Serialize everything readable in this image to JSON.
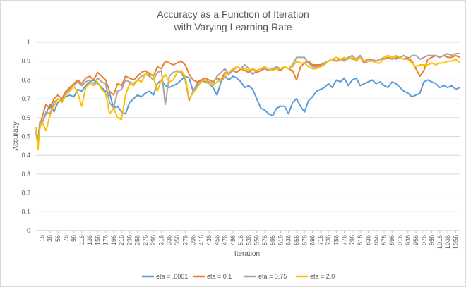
{
  "chart_data": {
    "type": "line",
    "title_line1": "Accuracy as a Function of Iteration",
    "title_line2": "with Varying Learning Rate",
    "xlabel": "Iteration",
    "ylabel": "Accuracy",
    "ylim": [
      0,
      1
    ],
    "yticks": [
      "0",
      "0.1",
      "0.2",
      "0.3",
      "0.4",
      "0.5",
      "0.6",
      "0.7",
      "0.8",
      "0.9",
      "1"
    ],
    "xlim": [
      1,
      1066
    ],
    "xticks": [
      16,
      36,
      56,
      76,
      96,
      116,
      136,
      156,
      176,
      196,
      216,
      236,
      256,
      276,
      296,
      316,
      336,
      356,
      376,
      396,
      416,
      436,
      456,
      476,
      496,
      516,
      536,
      556,
      576,
      596,
      616,
      636,
      656,
      676,
      696,
      716,
      736,
      756,
      776,
      796,
      816,
      836,
      856,
      876,
      896,
      916,
      936,
      956,
      976,
      996,
      1016,
      1036,
      1056
    ],
    "grid": "horizontal",
    "legend_position": "bottom",
    "series": [
      {
        "name": "eta = .0001",
        "color": "#5b9bd5",
        "x": [
          1,
          6,
          11,
          16,
          26,
          36,
          46,
          56,
          66,
          76,
          86,
          96,
          106,
          116,
          126,
          136,
          146,
          156,
          166,
          176,
          186,
          196,
          206,
          216,
          226,
          236,
          246,
          256,
          266,
          276,
          286,
          296,
          306,
          316,
          326,
          336,
          346,
          356,
          366,
          376,
          386,
          396,
          406,
          416,
          426,
          436,
          446,
          456,
          466,
          476,
          486,
          496,
          506,
          516,
          526,
          536,
          546,
          556,
          566,
          576,
          586,
          596,
          606,
          616,
          626,
          636,
          646,
          656,
          666,
          676,
          686,
          696,
          706,
          716,
          726,
          736,
          746,
          756,
          766,
          776,
          786,
          796,
          806,
          816,
          826,
          836,
          846,
          856,
          866,
          876,
          886,
          896,
          906,
          916,
          926,
          936,
          946,
          956,
          966,
          976,
          986,
          996,
          1006,
          1016,
          1026,
          1036,
          1046,
          1056,
          1066
        ],
        "values": [
          0.53,
          0.48,
          0.58,
          0.57,
          0.62,
          0.67,
          0.63,
          0.68,
          0.7,
          0.71,
          0.72,
          0.71,
          0.75,
          0.74,
          0.77,
          0.79,
          0.8,
          0.78,
          0.76,
          0.74,
          0.73,
          0.65,
          0.66,
          0.63,
          0.62,
          0.68,
          0.7,
          0.72,
          0.71,
          0.73,
          0.74,
          0.72,
          0.78,
          0.8,
          0.77,
          0.76,
          0.77,
          0.78,
          0.8,
          0.82,
          0.81,
          0.74,
          0.77,
          0.8,
          0.79,
          0.78,
          0.76,
          0.72,
          0.79,
          0.82,
          0.8,
          0.82,
          0.81,
          0.79,
          0.76,
          0.77,
          0.75,
          0.7,
          0.65,
          0.64,
          0.62,
          0.61,
          0.65,
          0.66,
          0.66,
          0.62,
          0.68,
          0.7,
          0.66,
          0.63,
          0.69,
          0.71,
          0.74,
          0.75,
          0.76,
          0.78,
          0.76,
          0.8,
          0.79,
          0.81,
          0.77,
          0.8,
          0.81,
          0.77,
          0.78,
          0.79,
          0.8,
          0.78,
          0.79,
          0.77,
          0.76,
          0.79,
          0.78,
          0.76,
          0.74,
          0.73,
          0.71,
          0.72,
          0.73,
          0.79,
          0.8,
          0.79,
          0.78,
          0.76,
          0.77,
          0.76,
          0.77,
          0.75,
          0.76
        ]
      },
      {
        "name": "eta = 0.1",
        "color": "#ed7d31",
        "x": [
          1,
          6,
          11,
          16,
          26,
          36,
          46,
          56,
          66,
          76,
          86,
          96,
          106,
          116,
          126,
          136,
          146,
          156,
          166,
          176,
          186,
          196,
          206,
          216,
          226,
          236,
          246,
          256,
          266,
          276,
          286,
          296,
          306,
          316,
          326,
          336,
          346,
          356,
          366,
          376,
          386,
          396,
          406,
          416,
          426,
          436,
          446,
          456,
          466,
          476,
          486,
          496,
          506,
          516,
          526,
          536,
          546,
          556,
          566,
          576,
          586,
          596,
          606,
          616,
          626,
          636,
          646,
          656,
          666,
          676,
          686,
          696,
          706,
          716,
          726,
          736,
          746,
          756,
          766,
          776,
          786,
          796,
          806,
          816,
          826,
          836,
          846,
          856,
          866,
          876,
          886,
          896,
          906,
          916,
          926,
          936,
          946,
          956,
          966,
          976,
          986,
          996,
          1006,
          1016,
          1026,
          1036,
          1046,
          1056,
          1066
        ],
        "values": [
          0.52,
          0.45,
          0.56,
          0.6,
          0.67,
          0.65,
          0.7,
          0.72,
          0.7,
          0.74,
          0.76,
          0.78,
          0.8,
          0.78,
          0.81,
          0.82,
          0.8,
          0.84,
          0.82,
          0.8,
          0.74,
          0.72,
          0.78,
          0.77,
          0.82,
          0.81,
          0.8,
          0.82,
          0.84,
          0.85,
          0.83,
          0.82,
          0.87,
          0.86,
          0.9,
          0.89,
          0.88,
          0.89,
          0.9,
          0.88,
          0.83,
          0.8,
          0.79,
          0.8,
          0.81,
          0.8,
          0.79,
          0.81,
          0.8,
          0.84,
          0.83,
          0.85,
          0.84,
          0.86,
          0.85,
          0.84,
          0.86,
          0.84,
          0.85,
          0.86,
          0.85,
          0.86,
          0.86,
          0.85,
          0.87,
          0.86,
          0.85,
          0.8,
          0.87,
          0.89,
          0.9,
          0.88,
          0.88,
          0.88,
          0.89,
          0.9,
          0.91,
          0.9,
          0.91,
          0.91,
          0.92,
          0.91,
          0.91,
          0.92,
          0.89,
          0.9,
          0.91,
          0.9,
          0.91,
          0.91,
          0.92,
          0.91,
          0.92,
          0.92,
          0.91,
          0.92,
          0.9,
          0.86,
          0.82,
          0.85,
          0.91,
          0.92,
          0.93,
          0.92,
          0.93,
          0.92,
          0.92,
          0.93,
          0.92
        ]
      },
      {
        "name": "eta = 0.75",
        "color": "#a5a5a5",
        "x": [
          1,
          6,
          11,
          16,
          26,
          36,
          46,
          56,
          66,
          76,
          86,
          96,
          106,
          116,
          126,
          136,
          146,
          156,
          166,
          176,
          186,
          196,
          206,
          216,
          226,
          236,
          246,
          256,
          266,
          276,
          286,
          296,
          306,
          316,
          326,
          336,
          346,
          356,
          366,
          376,
          386,
          396,
          406,
          416,
          426,
          436,
          446,
          456,
          466,
          476,
          486,
          496,
          506,
          516,
          526,
          536,
          546,
          556,
          566,
          576,
          586,
          596,
          606,
          616,
          626,
          636,
          646,
          656,
          666,
          676,
          686,
          696,
          706,
          716,
          726,
          736,
          746,
          756,
          766,
          776,
          786,
          796,
          806,
          816,
          826,
          836,
          846,
          856,
          866,
          876,
          886,
          896,
          906,
          916,
          926,
          936,
          946,
          956,
          966,
          976,
          986,
          996,
          1006,
          1016,
          1026,
          1036,
          1046,
          1056,
          1066
        ],
        "values": [
          0.52,
          0.47,
          0.55,
          0.57,
          0.63,
          0.62,
          0.68,
          0.7,
          0.69,
          0.73,
          0.75,
          0.77,
          0.79,
          0.77,
          0.79,
          0.8,
          0.78,
          0.81,
          0.79,
          0.78,
          0.68,
          0.65,
          0.74,
          0.75,
          0.8,
          0.79,
          0.78,
          0.8,
          0.82,
          0.83,
          0.82,
          0.8,
          0.84,
          0.85,
          0.67,
          0.82,
          0.84,
          0.85,
          0.84,
          0.8,
          0.69,
          0.74,
          0.78,
          0.79,
          0.8,
          0.79,
          0.78,
          0.82,
          0.84,
          0.86,
          0.83,
          0.85,
          0.87,
          0.86,
          0.88,
          0.86,
          0.83,
          0.85,
          0.86,
          0.86,
          0.85,
          0.86,
          0.87,
          0.86,
          0.87,
          0.86,
          0.88,
          0.92,
          0.92,
          0.92,
          0.89,
          0.87,
          0.87,
          0.87,
          0.89,
          0.9,
          0.91,
          0.92,
          0.91,
          0.9,
          0.92,
          0.93,
          0.91,
          0.93,
          0.9,
          0.91,
          0.91,
          0.9,
          0.91,
          0.92,
          0.93,
          0.92,
          0.91,
          0.92,
          0.93,
          0.91,
          0.93,
          0.93,
          0.91,
          0.92,
          0.93,
          0.93,
          0.93,
          0.92,
          0.93,
          0.94,
          0.93,
          0.94,
          0.94
        ]
      },
      {
        "name": "eta = 2.0",
        "color": "#ffc000",
        "x": [
          1,
          6,
          11,
          16,
          26,
          36,
          46,
          56,
          66,
          76,
          86,
          96,
          106,
          116,
          126,
          136,
          146,
          156,
          166,
          176,
          186,
          196,
          206,
          216,
          226,
          236,
          246,
          256,
          266,
          276,
          286,
          296,
          306,
          316,
          326,
          336,
          346,
          356,
          366,
          376,
          386,
          396,
          406,
          416,
          426,
          436,
          446,
          456,
          466,
          476,
          486,
          496,
          506,
          516,
          526,
          536,
          546,
          556,
          566,
          576,
          586,
          596,
          606,
          616,
          626,
          636,
          646,
          656,
          666,
          676,
          686,
          696,
          706,
          716,
          726,
          736,
          746,
          756,
          766,
          776,
          786,
          796,
          806,
          816,
          826,
          836,
          846,
          856,
          866,
          876,
          886,
          896,
          906,
          916,
          926,
          936,
          946,
          956,
          966,
          976,
          986,
          996,
          1006,
          1016,
          1026,
          1036,
          1046,
          1056,
          1066
        ],
        "values": [
          0.55,
          0.43,
          0.55,
          0.58,
          0.53,
          0.61,
          0.66,
          0.7,
          0.68,
          0.72,
          0.74,
          0.77,
          0.73,
          0.66,
          0.76,
          0.78,
          0.77,
          0.79,
          0.75,
          0.73,
          0.62,
          0.65,
          0.6,
          0.59,
          0.72,
          0.78,
          0.77,
          0.8,
          0.79,
          0.83,
          0.84,
          0.82,
          0.74,
          0.8,
          0.83,
          0.79,
          0.8,
          0.84,
          0.85,
          0.82,
          0.7,
          0.73,
          0.76,
          0.79,
          0.8,
          0.78,
          0.77,
          0.79,
          0.8,
          0.82,
          0.84,
          0.86,
          0.87,
          0.86,
          0.86,
          0.85,
          0.86,
          0.85,
          0.86,
          0.87,
          0.86,
          0.85,
          0.86,
          0.86,
          0.87,
          0.86,
          0.87,
          0.9,
          0.89,
          0.89,
          0.87,
          0.86,
          0.86,
          0.87,
          0.88,
          0.9,
          0.91,
          0.92,
          0.91,
          0.92,
          0.91,
          0.92,
          0.9,
          0.92,
          0.9,
          0.9,
          0.9,
          0.89,
          0.89,
          0.92,
          0.93,
          0.92,
          0.93,
          0.92,
          0.91,
          0.91,
          0.89,
          0.87,
          0.88,
          0.88,
          0.88,
          0.89,
          0.88,
          0.89,
          0.89,
          0.9,
          0.9,
          0.91,
          0.89
        ]
      }
    ]
  }
}
